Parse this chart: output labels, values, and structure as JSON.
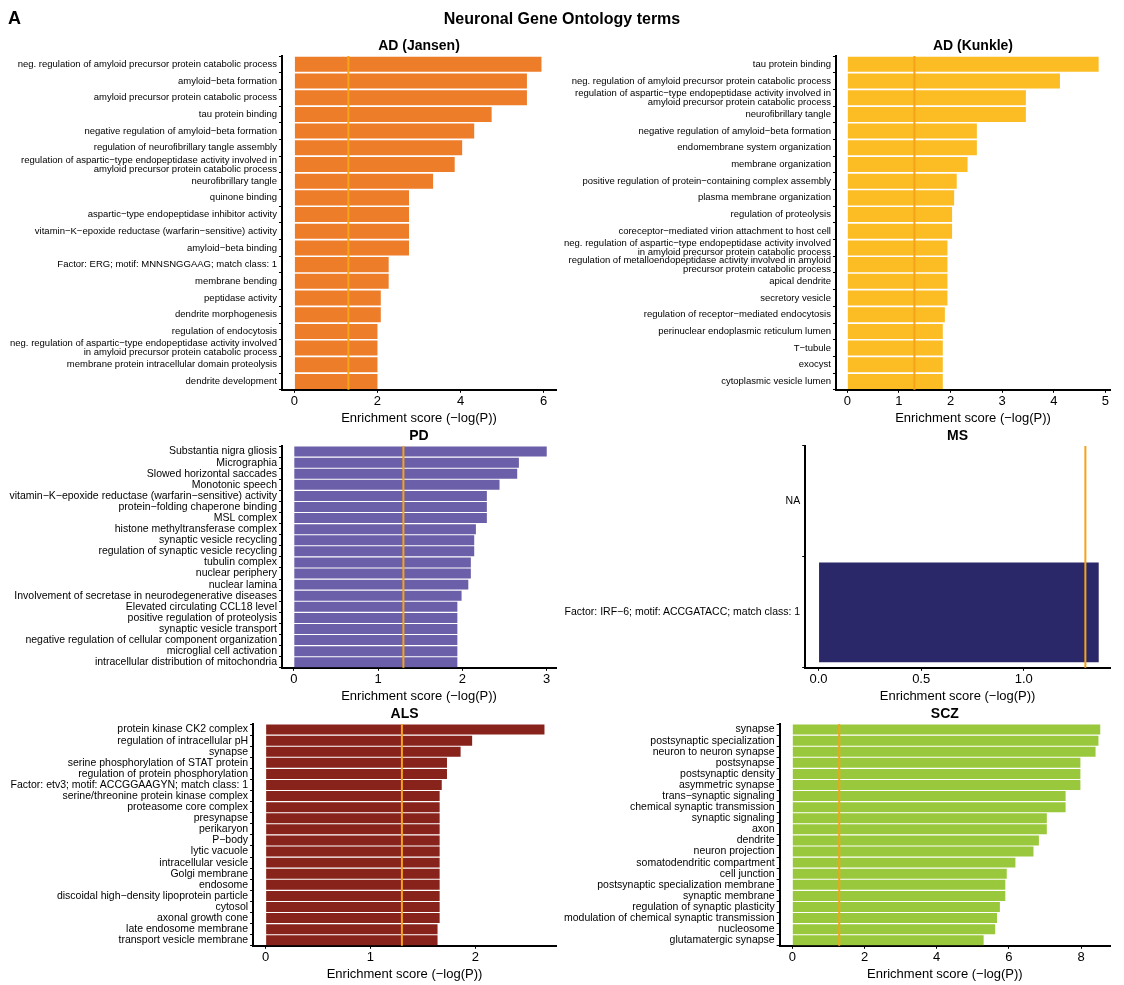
{
  "chart_data": [
    {
      "type": "bar",
      "orientation": "horizontal",
      "title": "AD (Jansen)",
      "xlabel": "Enrichment score (−log(P))",
      "annotations": [
        "A",
        "Neuronal Gene Ontology terms"
      ],
      "color": "#ee7d2a",
      "categories": [
        "neg. regulation of amyloid precursor protein catabolic process",
        "amyloid−beta formation",
        "amyloid precursor protein catabolic process",
        "tau protein binding",
        "negative regulation of amyloid−beta formation",
        "regulation of neurofibrillary tangle assembly",
        "regulation of aspartic−type endopeptidase activity involved in\namyloid precursor protein catabolic process",
        "neurofibrillary tangle",
        "quinone binding",
        "aspartic−type endopeptidase inhibitor activity",
        "vitamin−K−epoxide reductase (warfarin−sensitive) activity",
        "amyloid−beta binding",
        "Factor: ERG; motif: MNNSNGGAAG; match class: 1",
        "membrane bending",
        "peptidase activity",
        "dendrite morphogenesis",
        "regulation of endocytosis",
        "neg. regulation of aspartic−type endopeptidase activity involved\nin amyloid precursor protein catabolic process",
        "membrane protein intracellular domain proteolysis",
        "dendrite development"
      ],
      "values": [
        5.95,
        5.6,
        5.6,
        4.75,
        4.33,
        4.04,
        3.86,
        3.34,
        2.76,
        2.76,
        2.76,
        2.76,
        2.27,
        2.27,
        2.08,
        2.08,
        2.0,
        2.0,
        2.0,
        2.0
      ],
      "xlim": [
        -0.3,
        6.3
      ],
      "xticks": [
        0,
        2,
        4,
        6
      ],
      "ref_lines": [
        {
          "axis": "x",
          "value": 1.3,
          "color": "#f5a31a"
        }
      ]
    },
    {
      "type": "bar",
      "orientation": "horizontal",
      "title": "AD (Kunkle)",
      "xlabel": "Enrichment score (−log(P))",
      "color": "#fbbd23",
      "categories": [
        "tau protein binding",
        "neg. regulation of amyloid precursor protein catabolic process",
        "regulation of aspartic−type endopeptidase activity involved in\namyloid precursor protein catabolic process",
        "neurofibrillary tangle",
        "negative regulation of amyloid−beta formation",
        "endomembrane system organization",
        "membrane organization",
        "positive regulation of protein−containing complex assembly",
        "plasma membrane organization",
        "regulation of proteolysis",
        "coreceptor−mediated virion attachment to host cell",
        "neg. regulation of aspartic−type endopeptidase activity involved\nin amyloid precursor protein catabolic process",
        "regulation of metalloendopeptidase activity involved in amyloid\nprecursor protein catabolic process",
        "apical dendrite",
        "secretory vesicle",
        "regulation of receptor−mediated endocytosis",
        "perinuclear endoplasmic reticulum lumen",
        "T−tubule",
        "exocyst",
        "cytoplasmic vesicle lumen"
      ],
      "values": [
        4.87,
        4.12,
        3.46,
        3.46,
        2.51,
        2.51,
        2.33,
        2.12,
        2.07,
        2.03,
        2.03,
        1.94,
        1.94,
        1.94,
        1.94,
        1.89,
        1.85,
        1.85,
        1.85,
        1.85
      ],
      "xlim": [
        -0.22,
        5.09
      ],
      "xticks": [
        0,
        1,
        2,
        3,
        4,
        5
      ],
      "ref_lines": [
        {
          "axis": "x",
          "value": 1.3,
          "color": "#f5a31a"
        }
      ]
    },
    {
      "type": "bar",
      "orientation": "horizontal",
      "title": "PD",
      "xlabel": "Enrichment score (−log(P))",
      "color": "#6a5fa8",
      "categories": [
        "Substantia nigra gliosis",
        "Micrographia",
        "Slowed horizontal saccades",
        "Monotonic speech",
        "vitamin−K−epoxide reductase (warfarin−sensitive) activity",
        "protein−folding chaperone binding",
        "MSL complex",
        "histone methyltransferase complex",
        "synaptic vesicle recycling",
        "regulation of synaptic vesicle recycling",
        "tubulin complex",
        "nuclear periphery",
        "nuclear lamina",
        "Involvement of secretase in neurodegenerative diseases",
        "Elevated circulating CCL18 level",
        "positive regulation of proteolysis",
        "synaptic vesicle transport",
        "negative regulation of cellular component organization",
        "microglial cell activation",
        "intracellular distribution of mitochondria"
      ],
      "values": [
        3.0,
        2.67,
        2.65,
        2.44,
        2.29,
        2.29,
        2.29,
        2.16,
        2.14,
        2.14,
        2.1,
        2.1,
        2.07,
        1.99,
        1.94,
        1.94,
        1.94,
        1.94,
        1.94,
        1.94
      ],
      "xlim": [
        -0.14,
        3.11
      ],
      "xticks": [
        0,
        1,
        2,
        3
      ],
      "ref_lines": [
        {
          "axis": "x",
          "value": 1.3,
          "color": "#f5a31a"
        }
      ]
    },
    {
      "type": "bar",
      "orientation": "horizontal",
      "title": "MS",
      "xlabel": "Enrichment score (−log(P))",
      "color": "#2a2868",
      "categories": [
        "NA",
        "Factor: IRF−6; motif: ACCGATACC; match class: 1"
      ],
      "values": [
        null,
        1.365
      ],
      "xlim": [
        -0.065,
        1.42
      ],
      "xticks": [
        {
          "value": 0,
          "label": "0.0"
        },
        {
          "value": 0.5,
          "label": "0.5"
        },
        {
          "value": 1,
          "label": "1.0"
        }
      ],
      "ref_lines": [
        {
          "axis": "x",
          "value": 1.3,
          "color": "#f5a31a"
        }
      ]
    },
    {
      "type": "bar",
      "orientation": "horizontal",
      "title": "ALS",
      "xlabel": "Enrichment score (−log(P))",
      "color": "#88231c",
      "categories": [
        "protein kinase CK2 complex",
        "regulation of intracellular pH",
        "synapse",
        "serine phosphorylation of STAT protein",
        "regulation of protein phosphorylation",
        "Factor: etv3; motif: ACCGGAAGYN; match class: 1",
        "serine/threonine protein kinase complex",
        "proteasome core complex",
        "presynapse",
        "perikaryon",
        "P−body",
        "lytic vacuole",
        "intracellular vesicle",
        "Golgi membrane",
        "endosome",
        "discoidal high−density lipoprotein particle",
        "cytosol",
        "axonal growth cone",
        "late endosome membrane",
        "transport vesicle membrane"
      ],
      "values": [
        2.66,
        1.97,
        1.86,
        1.73,
        1.73,
        1.68,
        1.66,
        1.66,
        1.66,
        1.66,
        1.66,
        1.66,
        1.66,
        1.66,
        1.66,
        1.66,
        1.66,
        1.66,
        1.64,
        1.64
      ],
      "xlim": [
        -0.12,
        2.77
      ],
      "xticks": [
        0,
        1,
        2
      ],
      "ref_lines": [
        {
          "axis": "x",
          "value": 1.3,
          "color": "#f5a31a"
        }
      ]
    },
    {
      "type": "bar",
      "orientation": "horizontal",
      "title": "SCZ",
      "xlabel": "Enrichment score (−log(P))",
      "color": "#9ac83c",
      "categories": [
        "synapse",
        "postsynaptic specialization",
        "neuron to neuron synapse",
        "postsynapse",
        "postsynaptic density",
        "asymmetric synapse",
        "trans−synaptic signaling",
        "chemical synaptic transmission",
        "synaptic signaling",
        "axon",
        "dendrite",
        "neuron projection",
        "somatodendritic compartment",
        "cell junction",
        "postsynaptic specialization membrane",
        "synaptic membrane",
        "regulation of synaptic plasticity",
        "modulation of chemical synaptic transmission",
        "nucleosome",
        "glutamatergic synapse"
      ],
      "values": [
        8.53,
        8.48,
        8.4,
        7.98,
        7.98,
        7.98,
        7.57,
        7.57,
        7.05,
        7.05,
        6.83,
        6.68,
        6.18,
        5.94,
        5.9,
        5.9,
        5.75,
        5.67,
        5.62,
        5.3
      ],
      "xlim": [
        -0.35,
        8.8
      ],
      "xticks": [
        0,
        2,
        4,
        6,
        8
      ],
      "ref_lines": [
        {
          "axis": "x",
          "value": 1.3,
          "color": "#f5a31a"
        }
      ]
    }
  ]
}
